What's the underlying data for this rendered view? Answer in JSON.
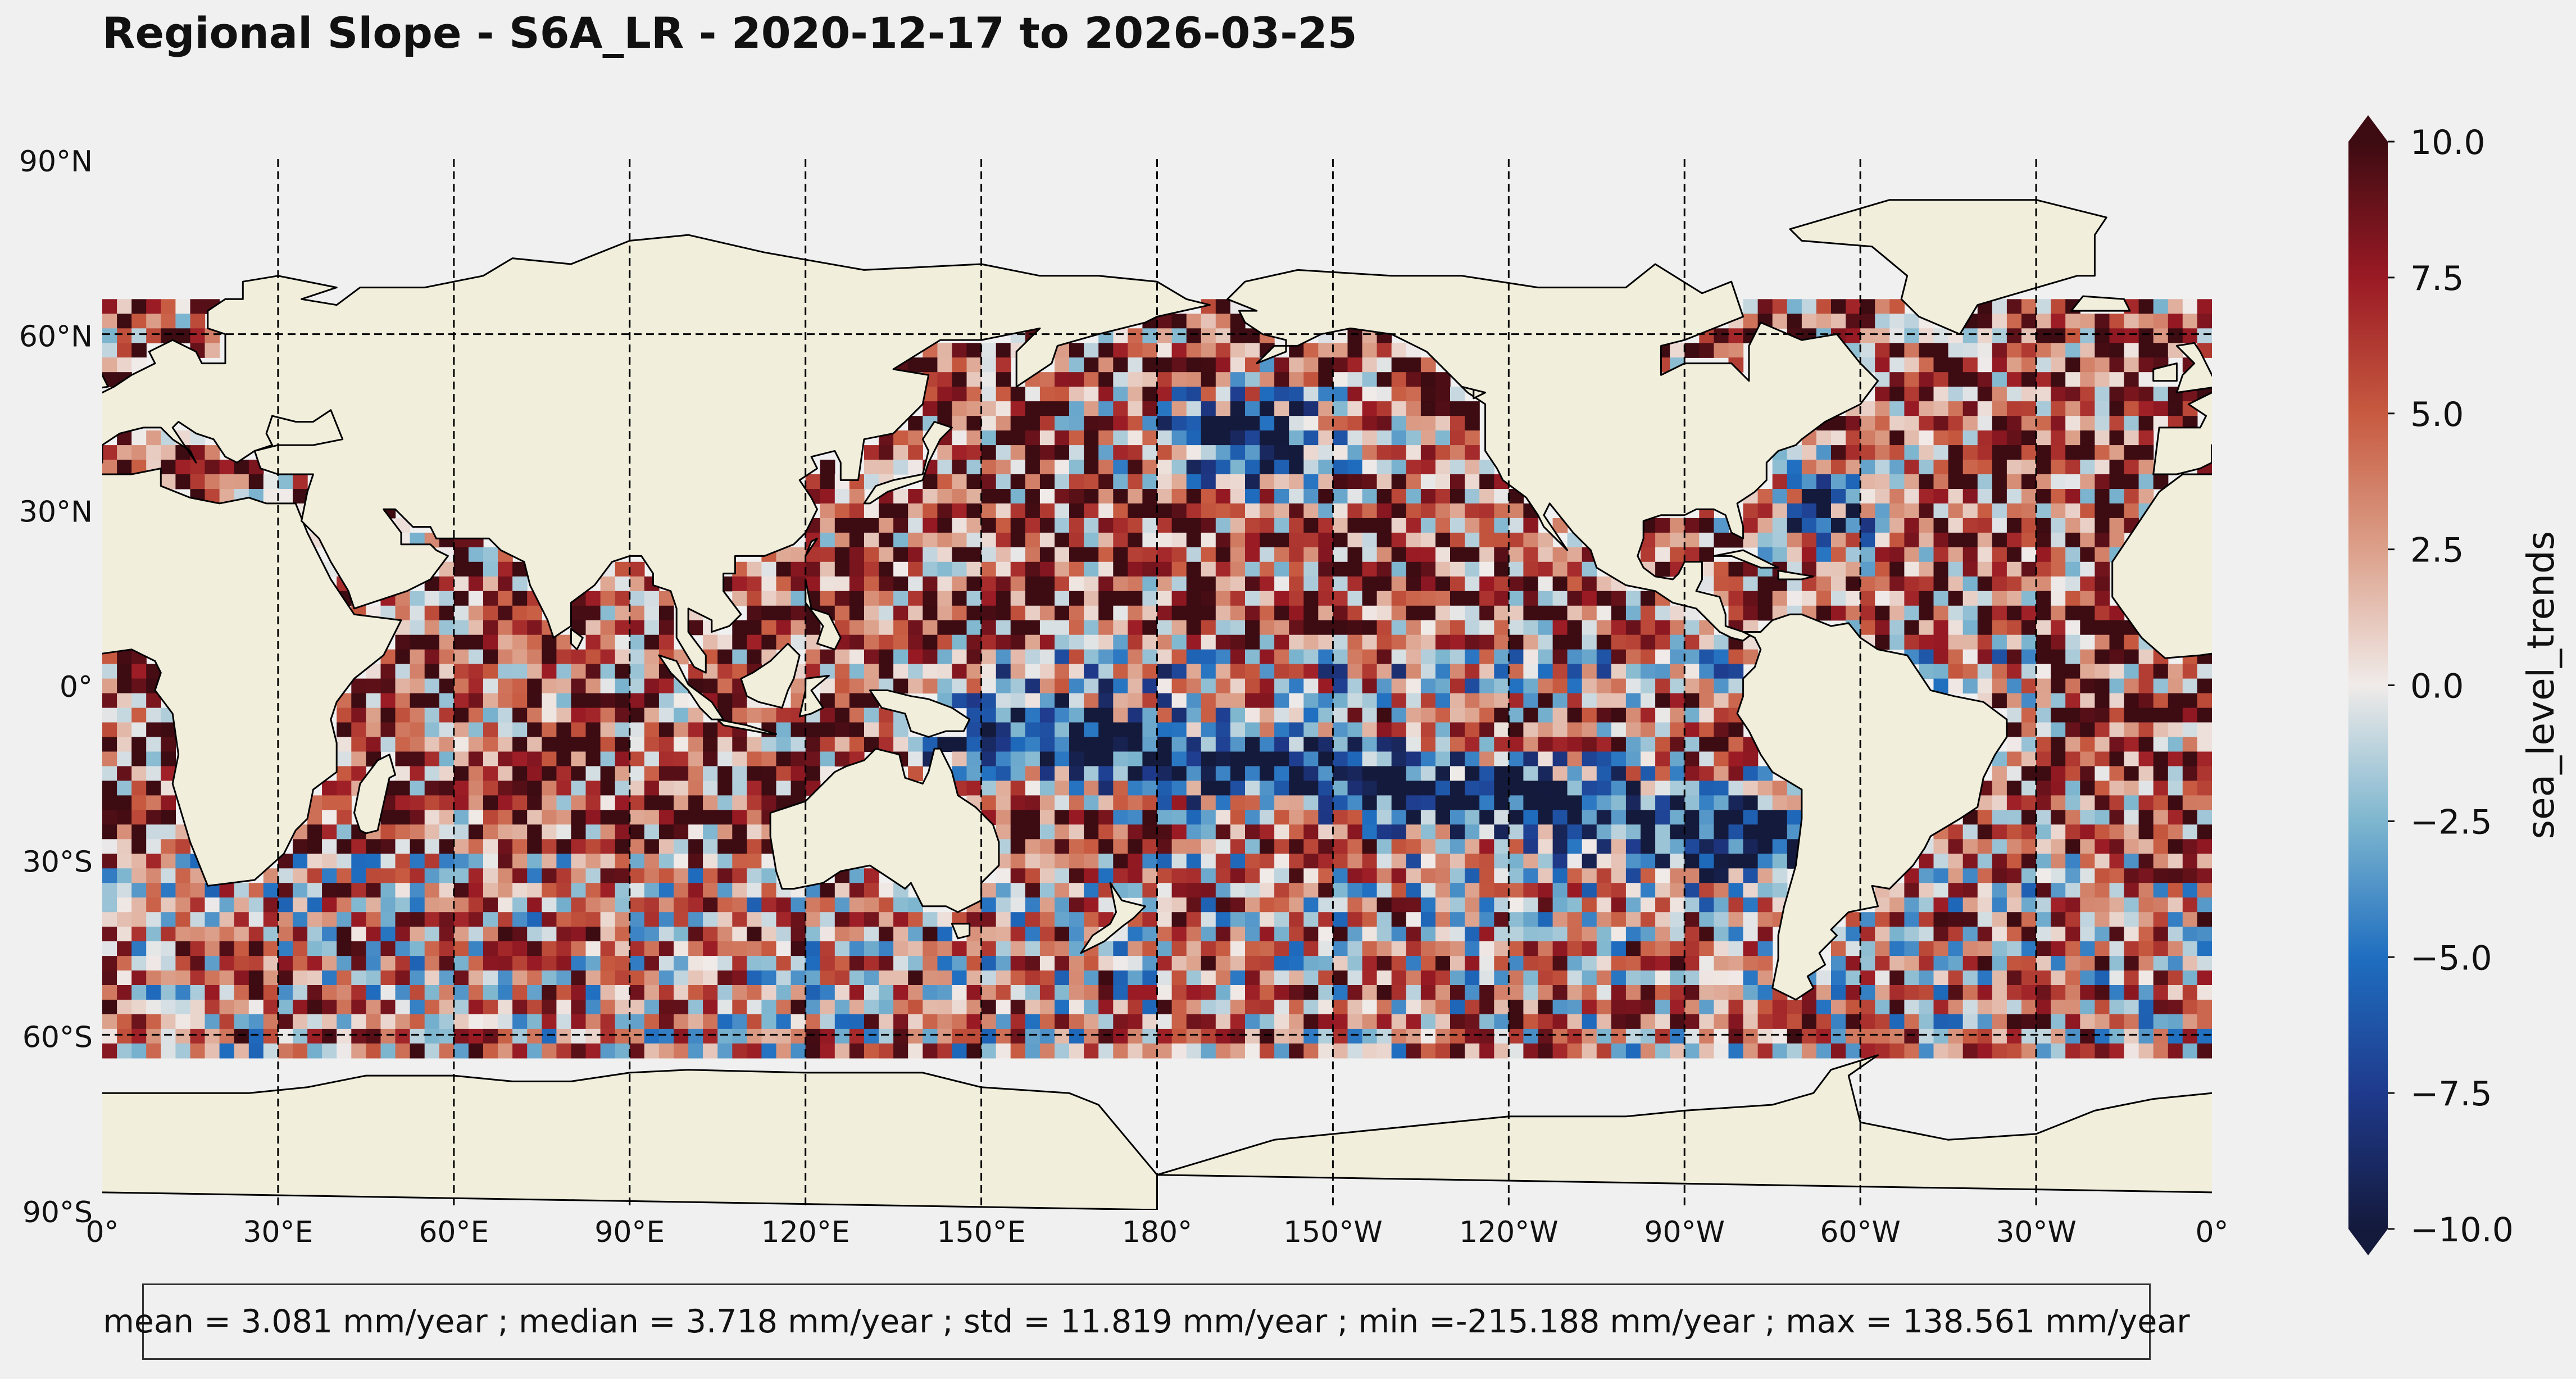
{
  "title": "Regional Slope - S6A_LR - 2020-12-17 to 2026-03-25",
  "map": {
    "projection": "PlateCarree",
    "central_longitude": 180,
    "lat_ticks": [
      "90°N",
      "60°N",
      "30°N",
      "0°",
      "30°S",
      "60°S",
      "90°S"
    ],
    "lon_ticks": [
      "0°",
      "30°E",
      "60°E",
      "90°E",
      "120°E",
      "150°E",
      "180°",
      "150°W",
      "120°W",
      "90°W",
      "60°W",
      "30°W",
      "0°"
    ],
    "gridlines": "dashed",
    "land_color": "#f1eedc",
    "coastline_color": "#000000"
  },
  "colorbar": {
    "label": "sea_level_trends",
    "min": -10.0,
    "max": 10.0,
    "extend": "both",
    "cmap": "balance",
    "colors": [
      "#141a3c",
      "#1f3a8c",
      "#1f6ec0",
      "#7eb6cf",
      "#f0ebe9",
      "#dca08a",
      "#c75a40",
      "#9a1a24",
      "#3d0b12"
    ],
    "ticks": [
      "10.0",
      "7.5",
      "5.0",
      "2.5",
      "0.0",
      "−2.5",
      "−5.0",
      "−7.5",
      "−10.0"
    ]
  },
  "stats": {
    "text": "mean = 3.081 mm/year ; median = 3.718 mm/year ; std = 11.819 mm/year ; min =-215.188 mm/year ; max = 138.561 mm/year",
    "mean": 3.081,
    "median": 3.718,
    "std": 11.819,
    "min": -215.188,
    "max": 138.561,
    "unit": "mm/year"
  }
}
